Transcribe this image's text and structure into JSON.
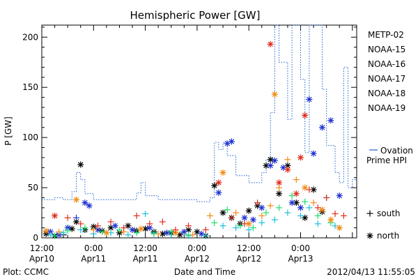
{
  "chart_data": {
    "type": "scatter",
    "title": "Hemispheric Power [GW]",
    "ylabel": "P [GW]",
    "xlabel": "Date and Time",
    "ylim": [
      0,
      212
    ],
    "yticks": [
      0,
      50,
      100,
      150,
      200
    ],
    "x_unit": "hours since 2012-04-10 12:00",
    "xlim": [
      0,
      73
    ],
    "x_ticks": [
      {
        "t": 0,
        "line1": "12:00",
        "line2": "Apr10"
      },
      {
        "t": 12,
        "line1": "0:00",
        "line2": "Apr11"
      },
      {
        "t": 24,
        "line1": "12:00",
        "line2": "Apr11"
      },
      {
        "t": 36,
        "line1": "0:00",
        "line2": "Apr12"
      },
      {
        "t": 48,
        "line1": "12:00",
        "line2": "Apr12"
      },
      {
        "t": 60,
        "line1": "0:00",
        "line2": "Apr13"
      }
    ],
    "footer_left": "Plot: CCMC",
    "footer_right": "2012/04/13 11:55:05",
    "grid": false,
    "legend_position": "right",
    "marker_legend": [
      {
        "symbol": "+",
        "label": "south"
      },
      {
        "symbol": "*",
        "label": "north"
      }
    ],
    "ovation": {
      "label_line1": "Ovation",
      "label_line2": "Prime HPI",
      "color": "#1a5fd0",
      "points": [
        [
          0,
          38
        ],
        [
          3,
          38
        ],
        [
          3,
          40
        ],
        [
          5,
          40
        ],
        [
          5,
          38
        ],
        [
          7,
          38
        ],
        [
          7,
          46
        ],
        [
          8,
          46
        ],
        [
          8,
          65
        ],
        [
          9,
          65
        ],
        [
          9,
          58
        ],
        [
          10,
          58
        ],
        [
          10,
          44
        ],
        [
          12,
          44
        ],
        [
          12,
          38
        ],
        [
          22,
          38
        ],
        [
          22,
          45
        ],
        [
          23,
          45
        ],
        [
          23,
          55
        ],
        [
          24,
          55
        ],
        [
          24,
          42
        ],
        [
          27,
          42
        ],
        [
          27,
          38
        ],
        [
          36,
          38
        ],
        [
          36,
          36
        ],
        [
          39,
          36
        ],
        [
          39,
          40
        ],
        [
          40,
          40
        ],
        [
          40,
          95
        ],
        [
          41,
          95
        ],
        [
          41,
          88
        ],
        [
          42,
          88
        ],
        [
          42,
          95
        ],
        [
          43,
          95
        ],
        [
          43,
          82
        ],
        [
          45,
          82
        ],
        [
          45,
          62
        ],
        [
          48,
          62
        ],
        [
          48,
          55
        ],
        [
          51,
          55
        ],
        [
          51,
          65
        ],
        [
          52,
          65
        ],
        [
          52,
          78
        ],
        [
          53,
          78
        ],
        [
          53,
          125
        ],
        [
          54,
          125
        ],
        [
          54,
          212
        ],
        [
          55,
          212
        ],
        [
          55,
          175
        ],
        [
          57,
          175
        ],
        [
          57,
          118
        ],
        [
          58,
          118
        ],
        [
          58,
          212
        ],
        [
          60,
          212
        ],
        [
          60,
          158
        ],
        [
          61,
          158
        ],
        [
          61,
          85
        ],
        [
          62,
          85
        ],
        [
          62,
          212
        ],
        [
          65,
          212
        ],
        [
          65,
          148
        ],
        [
          66,
          148
        ],
        [
          66,
          92
        ],
        [
          68,
          92
        ],
        [
          68,
          65
        ],
        [
          69,
          65
        ],
        [
          69,
          55
        ],
        [
          70,
          55
        ],
        [
          70,
          170
        ],
        [
          71,
          170
        ],
        [
          71,
          50
        ],
        [
          72,
          50
        ],
        [
          72,
          58
        ],
        [
          73,
          58
        ]
      ]
    },
    "series": [
      {
        "name": "METP-02",
        "color": "#000000",
        "points": [
          [
            1,
            4,
            "n"
          ],
          [
            3,
            2,
            "n"
          ],
          [
            5,
            3,
            "s"
          ],
          [
            7,
            9,
            "n"
          ],
          [
            8,
            16,
            "n"
          ],
          [
            9,
            73,
            "n"
          ],
          [
            10,
            8,
            "n"
          ],
          [
            12,
            11,
            "n"
          ],
          [
            14,
            7,
            "n"
          ],
          [
            16,
            10,
            "n"
          ],
          [
            18,
            5,
            "n"
          ],
          [
            20,
            12,
            "n"
          ],
          [
            22,
            7,
            "n"
          ],
          [
            24,
            9,
            "n"
          ],
          [
            26,
            6,
            "n"
          ],
          [
            28,
            4,
            "n"
          ],
          [
            30,
            5,
            "n"
          ],
          [
            32,
            3,
            "n"
          ],
          [
            34,
            8,
            "n"
          ],
          [
            36,
            6,
            "n"
          ],
          [
            38,
            2,
            "n"
          ],
          [
            40,
            52,
            "n"
          ],
          [
            42,
            25,
            "n"
          ],
          [
            44,
            20,
            "n"
          ],
          [
            46,
            14,
            "n"
          ],
          [
            48,
            27,
            "n"
          ],
          [
            50,
            32,
            "n"
          ],
          [
            52,
            72,
            "n"
          ],
          [
            53,
            78,
            "n"
          ],
          [
            55,
            44,
            "n"
          ],
          [
            57,
            72,
            "n"
          ],
          [
            59,
            35,
            "n"
          ],
          [
            61,
            20,
            "n"
          ],
          [
            63,
            48,
            "n"
          ],
          [
            65,
            26,
            "n"
          ]
        ]
      },
      {
        "name": "NOAA-15",
        "color": "#1a2fd0",
        "points": [
          [
            2,
            6,
            "n"
          ],
          [
            4,
            3,
            "n"
          ],
          [
            6,
            10,
            "n"
          ],
          [
            8,
            20,
            "s"
          ],
          [
            10,
            35,
            "n"
          ],
          [
            11,
            32,
            "n"
          ],
          [
            13,
            8,
            "n"
          ],
          [
            17,
            12,
            "n"
          ],
          [
            21,
            8,
            "n"
          ],
          [
            25,
            10,
            "n"
          ],
          [
            29,
            5,
            "n"
          ],
          [
            33,
            6,
            "n"
          ],
          [
            37,
            4,
            "n"
          ],
          [
            41,
            45,
            "n"
          ],
          [
            43,
            94,
            "n"
          ],
          [
            44,
            96,
            "n"
          ],
          [
            47,
            20,
            "n"
          ],
          [
            49,
            18,
            "n"
          ],
          [
            51,
            30,
            "n"
          ],
          [
            53,
            72,
            "n"
          ],
          [
            54,
            77,
            "n"
          ],
          [
            56,
            70,
            "n"
          ],
          [
            58,
            35,
            "n"
          ],
          [
            60,
            30,
            "n"
          ],
          [
            62,
            138,
            "n"
          ],
          [
            63,
            84,
            "n"
          ],
          [
            65,
            110,
            "n"
          ],
          [
            67,
            117,
            "n"
          ],
          [
            69,
            42,
            "n"
          ]
        ]
      },
      {
        "name": "NOAA-16",
        "color": "#1ac0d8",
        "points": [
          [
            2,
            3,
            "s"
          ],
          [
            5,
            5,
            "s"
          ],
          [
            9,
            8,
            "s"
          ],
          [
            12,
            4,
            "s"
          ],
          [
            16,
            5,
            "s"
          ],
          [
            20,
            3,
            "s"
          ],
          [
            24,
            24,
            "s"
          ],
          [
            26,
            5,
            "s"
          ],
          [
            30,
            3,
            "s"
          ],
          [
            34,
            2,
            "s"
          ],
          [
            38,
            2,
            "s"
          ],
          [
            42,
            12,
            "s"
          ],
          [
            45,
            10,
            "s"
          ],
          [
            48,
            8,
            "s"
          ],
          [
            51,
            15,
            "s"
          ],
          [
            54,
            18,
            "s"
          ],
          [
            57,
            25,
            "s"
          ],
          [
            60,
            22,
            "s"
          ],
          [
            62,
            30,
            "s"
          ],
          [
            64,
            14,
            "s"
          ],
          [
            66,
            40,
            "s"
          ],
          [
            68,
            12,
            "s"
          ]
        ]
      },
      {
        "name": "NOAA-17",
        "color": "#1ae06a",
        "points": [
          [
            3,
            2,
            "s"
          ],
          [
            6,
            7,
            "s"
          ],
          [
            10,
            10,
            "s"
          ],
          [
            14,
            6,
            "s"
          ],
          [
            18,
            8,
            "s"
          ],
          [
            22,
            5,
            "s"
          ],
          [
            26,
            4,
            "s"
          ],
          [
            30,
            6,
            "s"
          ],
          [
            34,
            3,
            "s"
          ],
          [
            40,
            15,
            "s"
          ],
          [
            43,
            28,
            "s"
          ],
          [
            46,
            12,
            "s"
          ],
          [
            49,
            10,
            "s"
          ],
          [
            52,
            25,
            "s"
          ],
          [
            55,
            30,
            "s"
          ],
          [
            58,
            42,
            "s"
          ],
          [
            61,
            36,
            "s"
          ],
          [
            64,
            22,
            "s"
          ],
          [
            67,
            15,
            "s"
          ]
        ]
      },
      {
        "name": "NOAA-18",
        "color": "#f08a10",
        "points": [
          [
            1,
            7,
            "n"
          ],
          [
            4,
            6,
            "s"
          ],
          [
            8,
            38,
            "n"
          ],
          [
            12,
            8,
            "s"
          ],
          [
            15,
            5,
            "n"
          ],
          [
            19,
            6,
            "s"
          ],
          [
            23,
            9,
            "n"
          ],
          [
            27,
            4,
            "s"
          ],
          [
            31,
            5,
            "n"
          ],
          [
            35,
            3,
            "s"
          ],
          [
            39,
            22,
            "s"
          ],
          [
            42,
            65,
            "n"
          ],
          [
            45,
            25,
            "s"
          ],
          [
            48,
            14,
            "n"
          ],
          [
            51,
            22,
            "s"
          ],
          [
            53,
            32,
            "s"
          ],
          [
            54,
            143,
            "n"
          ],
          [
            55,
            50,
            "s"
          ],
          [
            57,
            78,
            "s"
          ],
          [
            59,
            58,
            "s"
          ],
          [
            61,
            50,
            "n"
          ],
          [
            63,
            35,
            "s"
          ],
          [
            65,
            28,
            "n"
          ],
          [
            67,
            18,
            "n"
          ],
          [
            69,
            10,
            "n"
          ]
        ]
      },
      {
        "name": "NOAA-19",
        "color": "#e02a1a",
        "points": [
          [
            3,
            22,
            "n"
          ],
          [
            6,
            20,
            "s"
          ],
          [
            9,
            14,
            "s"
          ],
          [
            13,
            12,
            "s"
          ],
          [
            16,
            16,
            "s"
          ],
          [
            19,
            10,
            "s"
          ],
          [
            22,
            22,
            "s"
          ],
          [
            25,
            14,
            "s"
          ],
          [
            28,
            16,
            "s"
          ],
          [
            31,
            8,
            "s"
          ],
          [
            34,
            12,
            "s"
          ],
          [
            38,
            8,
            "s"
          ],
          [
            41,
            55,
            "n"
          ],
          [
            44,
            20,
            "s"
          ],
          [
            47,
            14,
            "s"
          ],
          [
            50,
            35,
            "s"
          ],
          [
            53,
            193,
            "n"
          ],
          [
            55,
            55,
            "n"
          ],
          [
            57,
            68,
            "n"
          ],
          [
            59,
            44,
            "n"
          ],
          [
            60,
            80,
            "n"
          ],
          [
            61,
            122,
            "n"
          ],
          [
            62,
            48,
            "s"
          ],
          [
            64,
            30,
            "s"
          ],
          [
            66,
            40,
            "s"
          ],
          [
            68,
            24,
            "s"
          ],
          [
            70,
            22,
            "s"
          ]
        ]
      }
    ]
  }
}
